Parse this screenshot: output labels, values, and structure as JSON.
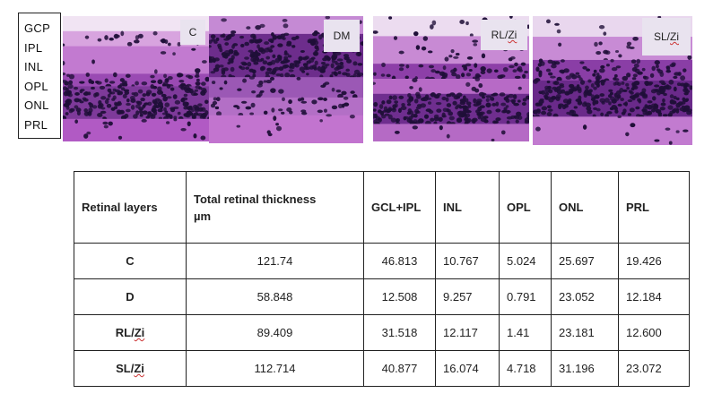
{
  "layers": [
    "GCP",
    "IPL",
    "INL",
    "OPL",
    "ONL",
    "PRL"
  ],
  "panels": [
    {
      "label": "C"
    },
    {
      "label": "DM"
    },
    {
      "label_prefix": "RL/",
      "label_suffix": "Zi"
    },
    {
      "label_prefix": "SL/",
      "label_suffix": "Zi"
    }
  ],
  "colors": {
    "stain_pink": "#c98fd6",
    "stain_purple": "#7a2a9b",
    "nuclei": "#1f0f38",
    "label_bg": "#e9e3ef",
    "spellcheck": "#cc3333"
  },
  "table": {
    "headers": {
      "layers": "Retinal layers",
      "thickness_line1": "Total retinal thickness",
      "thickness_line2": "µm",
      "gcl_ipl": "GCL+IPL",
      "inl": "INL",
      "opl": "OPL",
      "onl": "ONL",
      "prl": "PRL"
    },
    "rows": [
      {
        "group_prefix": "",
        "group_suffix": "C",
        "total": "121.74",
        "gcl_ipl": "46.813",
        "inl": "10.767",
        "opl": "5.024",
        "onl": "25.697",
        "prl": "19.426"
      },
      {
        "group_prefix": "",
        "group_suffix": "D",
        "total": "58.848",
        "gcl_ipl": "12.508",
        "inl": "9.257",
        "opl": "0.791",
        "onl": "23.052",
        "prl": "12.184"
      },
      {
        "group_prefix": "RL/",
        "group_suffix": "Zi",
        "total": "89.409",
        "gcl_ipl": "31.518",
        "inl": "12.117",
        "opl": "1.41",
        "onl": "23.181",
        "prl": "12.600"
      },
      {
        "group_prefix": "SL/",
        "group_suffix": "Zi",
        "total": "112.714",
        "gcl_ipl": "40.877",
        "inl": "16.074",
        "opl": "4.718",
        "onl": "31.196",
        "prl": "23.072"
      }
    ]
  }
}
